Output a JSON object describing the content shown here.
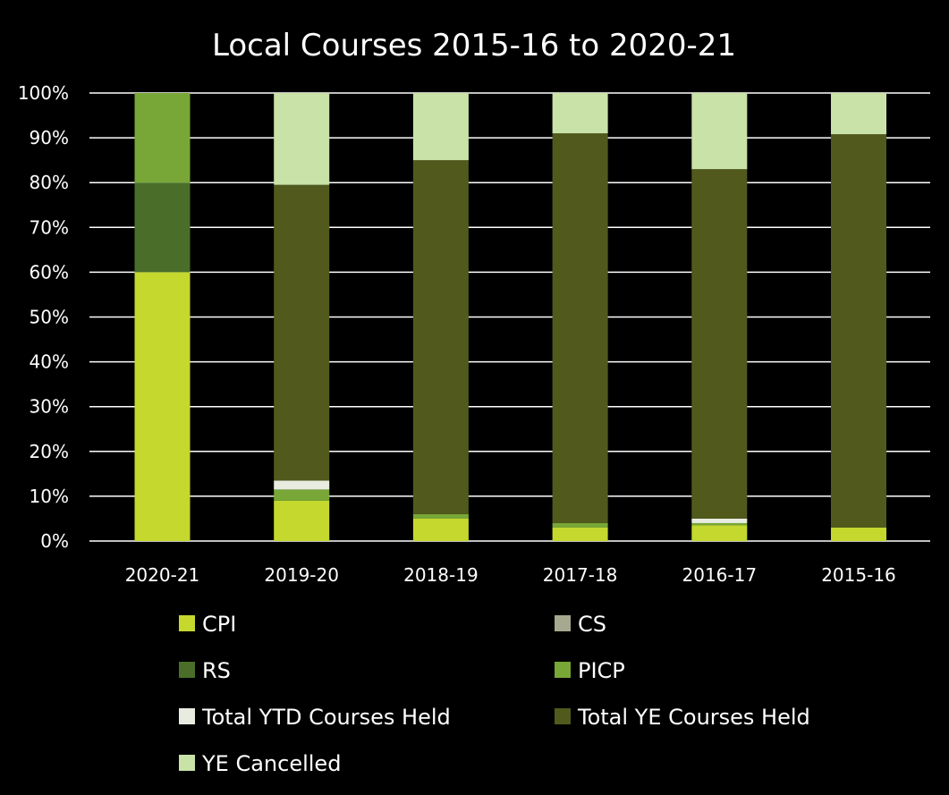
{
  "chart_data": {
    "type": "bar",
    "stacked": true,
    "title": "Local Courses 2015-16 to 2020-21",
    "xlabel": "",
    "ylabel": "",
    "ylim": [
      0,
      100
    ],
    "yticks": [
      "0%",
      "10%",
      "20%",
      "30%",
      "40%",
      "50%",
      "60%",
      "70%",
      "80%",
      "90%",
      "100%"
    ],
    "grid": true,
    "legend_position": "bottom",
    "categories": [
      "2020-21",
      "2019-20",
      "2018-19",
      "2017-18",
      "2016-17",
      "2015-16"
    ],
    "series": [
      {
        "name": "CPI",
        "color": "#c5d82e",
        "values": [
          60,
          9,
          5,
          3,
          3.5,
          3
        ]
      },
      {
        "name": "CS",
        "color": "#a6a98f",
        "values": [
          0,
          0,
          0,
          0,
          0,
          0
        ]
      },
      {
        "name": "RS",
        "color": "#4a6e2a",
        "values": [
          20,
          0,
          0,
          0,
          0,
          0
        ]
      },
      {
        "name": "PICP",
        "color": "#78a737",
        "values": [
          20,
          2.5,
          1,
          1,
          0.5,
          0
        ]
      },
      {
        "name": "Total YTD Courses Held",
        "color": "#e8ece0",
        "values": [
          0,
          2,
          0,
          0,
          1,
          0
        ]
      },
      {
        "name": "Total YE Courses Held",
        "color": "#515a1c",
        "values": [
          0,
          66,
          79,
          87,
          78,
          87.8
        ]
      },
      {
        "name": "YE Cancelled",
        "color": "#c9e2a7",
        "values": [
          0,
          20.5,
          15,
          9,
          17,
          9.2
        ]
      }
    ]
  }
}
